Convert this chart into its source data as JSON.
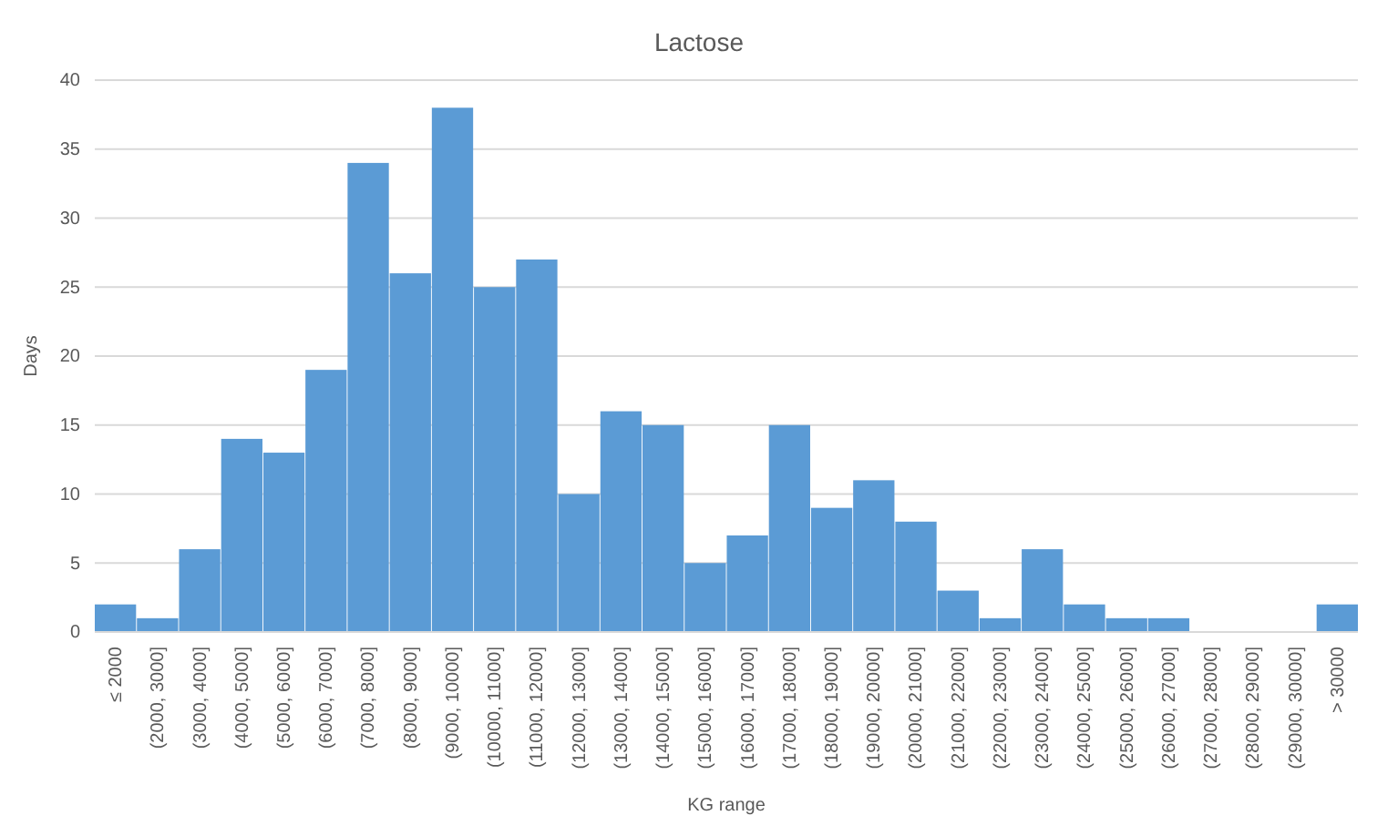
{
  "chart_data": {
    "type": "bar",
    "title": "Lactose",
    "xlabel": "KG range",
    "ylabel": "Days",
    "categories": [
      "≤ 2000",
      "(2000, 3000]",
      "(3000, 4000]",
      "(4000, 5000]",
      "(5000, 6000]",
      "(6000, 7000]",
      "(7000, 8000]",
      "(8000, 9000]",
      "(9000, 10000]",
      "(10000, 11000]",
      "(11000, 12000]",
      "(12000, 13000]",
      "(13000, 14000]",
      "(14000, 15000]",
      "(15000, 16000]",
      "(16000, 17000]",
      "(17000, 18000]",
      "(18000, 19000]",
      "(19000, 20000]",
      "(20000, 21000]",
      "(21000, 22000]",
      "(22000, 23000]",
      "(23000, 24000]",
      "(24000, 25000]",
      "(25000, 26000]",
      "(26000, 27000]",
      "(27000, 28000]",
      "(28000, 29000]",
      "(29000, 30000]",
      "> 30000"
    ],
    "values": [
      2,
      1,
      6,
      14,
      13,
      19,
      34,
      26,
      38,
      25,
      27,
      10,
      16,
      15,
      5,
      7,
      15,
      9,
      11,
      8,
      3,
      1,
      6,
      2,
      1,
      1,
      0,
      0,
      0,
      2
    ],
    "color": "#5b9bd5",
    "ylim": [
      0,
      40
    ],
    "yticks": [
      0,
      5,
      10,
      15,
      20,
      25,
      30,
      35,
      40
    ],
    "grid": "y"
  }
}
